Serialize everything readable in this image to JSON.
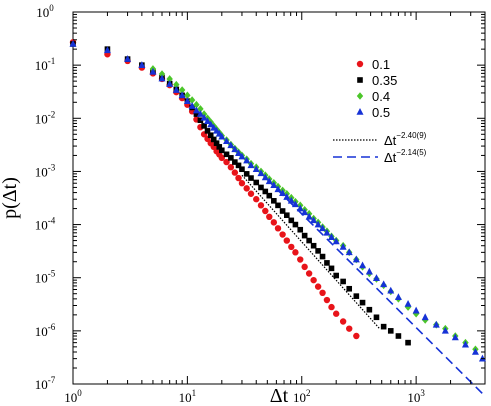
{
  "chart_data": {
    "type": "scatter",
    "title": "",
    "xlabel": "Δt",
    "ylabel": "p(Δt)",
    "xscale": "log",
    "yscale": "log",
    "xlim": [
      1,
      4000
    ],
    "ylim": [
      1e-07,
      1
    ],
    "x_ticks": [
      {
        "value": 1,
        "base": "10",
        "exp": "0"
      },
      {
        "value": 10,
        "base": "10",
        "exp": "1"
      },
      {
        "value": 100,
        "base": "10",
        "exp": "2"
      },
      {
        "value": 1000,
        "base": "10",
        "exp": "3"
      }
    ],
    "y_ticks": [
      {
        "value": 1,
        "base": "10",
        "exp": "0"
      },
      {
        "value": 0.1,
        "base": "10",
        "exp": "-1"
      },
      {
        "value": 0.01,
        "base": "10",
        "exp": "-2"
      },
      {
        "value": 0.001,
        "base": "10",
        "exp": "-3"
      },
      {
        "value": 0.0001,
        "base": "10",
        "exp": "-4"
      },
      {
        "value": 1e-05,
        "base": "10",
        "exp": "-5"
      },
      {
        "value": 1e-06,
        "base": "10",
        "exp": "-6"
      },
      {
        "value": 1e-07,
        "base": "10",
        "exp": "-7"
      }
    ],
    "grid": false,
    "legend": "top-right",
    "series": [
      {
        "name": "0.1",
        "marker": "circle",
        "color": "#e8141a",
        "points": [
          [
            1,
            0.27
          ],
          [
            2,
            0.16
          ],
          [
            3,
            0.12
          ],
          [
            4,
            0.09
          ],
          [
            5,
            0.07
          ],
          [
            6,
            0.055
          ],
          [
            7,
            0.042
          ],
          [
            8,
            0.031
          ],
          [
            9,
            0.024
          ],
          [
            10,
            0.018
          ],
          [
            11,
            0.0135
          ],
          [
            12,
            0.0095
          ],
          [
            13,
            0.0068
          ],
          [
            14,
            0.005
          ],
          [
            15,
            0.0041
          ],
          [
            16,
            0.0034
          ],
          [
            17,
            0.0029
          ],
          [
            18,
            0.0024
          ],
          [
            19,
            0.0021
          ],
          [
            20,
            0.0018
          ],
          [
            22,
            0.0015
          ],
          [
            24,
            0.0012
          ],
          [
            26,
            0.00095
          ],
          [
            28,
            0.00075
          ],
          [
            30,
            0.0006
          ],
          [
            33,
            0.00048
          ],
          [
            36,
            0.00038
          ],
          [
            40,
            0.0003
          ],
          [
            44,
            0.00023
          ],
          [
            48,
            0.00018
          ],
          [
            52,
            0.00014
          ],
          [
            57,
            0.00011
          ],
          [
            62,
            8.5e-05
          ],
          [
            68,
            6.5e-05
          ],
          [
            74,
            5e-05
          ],
          [
            81,
            3.8e-05
          ],
          [
            88,
            3e-05
          ],
          [
            97,
            2.2e-05
          ],
          [
            106,
            1.6e-05
          ],
          [
            116,
            1.2e-05
          ],
          [
            127,
            9e-06
          ],
          [
            139,
            6.8e-06
          ],
          [
            152,
            5.2e-06
          ],
          [
            166,
            3.8e-06
          ],
          [
            182,
            2.8e-06
          ],
          [
            200,
            2.1e-06
          ],
          [
            230,
            1.5e-06
          ],
          [
            260,
            1.1e-06
          ],
          [
            300,
            8e-07
          ]
        ]
      },
      {
        "name": "0.35",
        "marker": "square",
        "color": "#000000",
        "points": [
          [
            1,
            0.25
          ],
          [
            2,
            0.2
          ],
          [
            3,
            0.13
          ],
          [
            4,
            0.1
          ],
          [
            5,
            0.075
          ],
          [
            6,
            0.058
          ],
          [
            7,
            0.045
          ],
          [
            8,
            0.035
          ],
          [
            9,
            0.027
          ],
          [
            10,
            0.021
          ],
          [
            11,
            0.016
          ],
          [
            12,
            0.012
          ],
          [
            13,
            0.0092
          ],
          [
            14,
            0.0072
          ],
          [
            15,
            0.0058
          ],
          [
            16,
            0.0048
          ],
          [
            17,
            0.004
          ],
          [
            18,
            0.0034
          ],
          [
            19,
            0.0029
          ],
          [
            20,
            0.0025
          ],
          [
            22,
            0.0021
          ],
          [
            24,
            0.0018
          ],
          [
            26,
            0.0015
          ],
          [
            28,
            0.0013
          ],
          [
            30,
            0.0011
          ],
          [
            33,
            0.0009
          ],
          [
            36,
            0.00075
          ],
          [
            40,
            0.00062
          ],
          [
            44,
            0.0005
          ],
          [
            48,
            0.00042
          ],
          [
            52,
            0.00035
          ],
          [
            57,
            0.00028
          ],
          [
            62,
            0.00023
          ],
          [
            68,
            0.00018
          ],
          [
            74,
            0.00015
          ],
          [
            81,
            0.00012
          ],
          [
            88,
            0.0001
          ],
          [
            97,
            8e-05
          ],
          [
            106,
            6.2e-05
          ],
          [
            116,
            5e-05
          ],
          [
            127,
            4e-05
          ],
          [
            139,
            3.2e-05
          ],
          [
            152,
            2.5e-05
          ],
          [
            166,
            1.9e-05
          ],
          [
            182,
            1.5e-05
          ],
          [
            200,
            1.1e-05
          ],
          [
            230,
            8.5e-06
          ],
          [
            260,
            6.2e-06
          ],
          [
            300,
            4.5e-06
          ],
          [
            340,
            3.4e-06
          ],
          [
            390,
            2.5e-06
          ],
          [
            450,
            1.8e-06
          ],
          [
            520,
            1.2e-06
          ],
          [
            600,
            1e-06
          ],
          [
            700,
            8e-07
          ],
          [
            850,
            6e-07
          ]
        ]
      },
      {
        "name": "0.4",
        "marker": "diamond",
        "color": "#4cc62a",
        "points": [
          [
            5,
            0.085
          ],
          [
            6,
            0.068
          ],
          [
            7,
            0.055
          ],
          [
            8,
            0.043
          ],
          [
            9,
            0.034
          ],
          [
            10,
            0.027
          ],
          [
            11,
            0.022
          ],
          [
            12,
            0.018
          ],
          [
            13,
            0.015
          ],
          [
            14,
            0.012
          ],
          [
            15,
            0.01
          ],
          [
            16,
            0.0085
          ],
          [
            17,
            0.0072
          ],
          [
            18,
            0.0062
          ],
          [
            19,
            0.0054
          ],
          [
            20,
            0.0047
          ],
          [
            22,
            0.0039
          ],
          [
            24,
            0.0032
          ],
          [
            26,
            0.0027
          ],
          [
            28,
            0.0023
          ],
          [
            30,
            0.002
          ],
          [
            33,
            0.0017
          ],
          [
            36,
            0.0014
          ],
          [
            40,
            0.0012
          ],
          [
            44,
            0.001
          ],
          [
            48,
            0.00085
          ],
          [
            52,
            0.00072
          ],
          [
            57,
            0.00061
          ],
          [
            62,
            0.00052
          ],
          [
            68,
            0.00044
          ],
          [
            74,
            0.00038
          ],
          [
            81,
            0.00032
          ],
          [
            88,
            0.00027
          ],
          [
            97,
            0.00023
          ],
          [
            106,
            0.00019
          ],
          [
            116,
            0.00016
          ],
          [
            127,
            0.00013
          ],
          [
            139,
            0.00011
          ],
          [
            152,
            9e-05
          ],
          [
            166,
            7.5e-05
          ],
          [
            182,
            6e-05
          ],
          [
            200,
            5e-05
          ],
          [
            230,
            4e-05
          ],
          [
            260,
            3e-05
          ],
          [
            300,
            2.2e-05
          ],
          [
            340,
            1.6e-05
          ],
          [
            390,
            1.2e-05
          ],
          [
            450,
            9.5e-06
          ],
          [
            520,
            7.2e-06
          ],
          [
            600,
            5.5e-06
          ],
          [
            700,
            4e-06
          ],
          [
            850,
            2.8e-06
          ],
          [
            1000,
            2.1e-06
          ],
          [
            1200,
            1.6e-06
          ],
          [
            1500,
            1.3e-06
          ],
          [
            1800,
            1.1e-06
          ],
          [
            2200,
            8e-07
          ],
          [
            2700,
            6e-07
          ],
          [
            3300,
            4.5e-07
          ]
        ]
      },
      {
        "name": "0.5",
        "marker": "triangle",
        "color": "#1632d6",
        "points": [
          [
            1,
            0.25
          ],
          [
            2,
            0.19
          ],
          [
            3,
            0.13
          ],
          [
            4,
            0.1
          ],
          [
            5,
            0.075
          ],
          [
            6,
            0.056
          ],
          [
            7,
            0.044
          ],
          [
            8,
            0.034
          ],
          [
            9,
            0.027
          ],
          [
            10,
            0.021
          ],
          [
            11,
            0.017
          ],
          [
            12,
            0.014
          ],
          [
            13,
            0.012
          ],
          [
            14,
            0.0102
          ],
          [
            15,
            0.0088
          ],
          [
            16,
            0.0076
          ],
          [
            17,
            0.0066
          ],
          [
            18,
            0.0058
          ],
          [
            19,
            0.0051
          ],
          [
            20,
            0.0045
          ],
          [
            22,
            0.0037
          ],
          [
            24,
            0.0031
          ],
          [
            26,
            0.0026
          ],
          [
            28,
            0.0022
          ],
          [
            30,
            0.0019
          ],
          [
            33,
            0.0016
          ],
          [
            36,
            0.0013
          ],
          [
            40,
            0.0011
          ],
          [
            44,
            0.00092
          ],
          [
            48,
            0.00077
          ],
          [
            52,
            0.00065
          ],
          [
            57,
            0.00055
          ],
          [
            62,
            0.00046
          ],
          [
            68,
            0.00039
          ],
          [
            74,
            0.00033
          ],
          [
            81,
            0.00028
          ],
          [
            88,
            0.00024
          ],
          [
            97,
            0.0002
          ],
          [
            106,
            0.00017
          ],
          [
            116,
            0.00014
          ],
          [
            127,
            0.00012
          ],
          [
            139,
            0.0001
          ],
          [
            152,
            8.5e-05
          ],
          [
            166,
            7e-05
          ],
          [
            182,
            5.8e-05
          ],
          [
            200,
            4.8e-05
          ],
          [
            230,
            3.8e-05
          ],
          [
            260,
            3e-05
          ],
          [
            300,
            2.2e-05
          ],
          [
            340,
            1.7e-05
          ],
          [
            390,
            1.3e-05
          ],
          [
            450,
            9.8e-06
          ],
          [
            520,
            7.5e-06
          ],
          [
            600,
            5.7e-06
          ],
          [
            700,
            4.3e-06
          ],
          [
            850,
            3.2e-06
          ],
          [
            1000,
            2.4e-06
          ],
          [
            1200,
            1.8e-06
          ],
          [
            1500,
            1.3e-06
          ],
          [
            1800,
            1e-06
          ],
          [
            2200,
            7.5e-07
          ],
          [
            2700,
            5.5e-07
          ],
          [
            3300,
            4e-07
          ],
          [
            3800,
            3e-07
          ]
        ]
      }
    ],
    "fits": [
      {
        "name": "Δt^-2.40(9)",
        "base_label": "Δt",
        "exp_label": "−2.40(9)",
        "style": "dotted",
        "color": "#000000",
        "x_range": [
          30,
          480
        ],
        "exponent": -2.4,
        "y_at_start": 0.00085
      },
      {
        "name": "Δt^-2.14(5)",
        "base_label": "Δt",
        "exp_label": "−2.14(5)",
        "style": "dashed",
        "color": "#1632d6",
        "x_range": [
          50,
          4000
        ],
        "exponent": -2.14,
        "y_at_start": 0.0007
      }
    ]
  }
}
